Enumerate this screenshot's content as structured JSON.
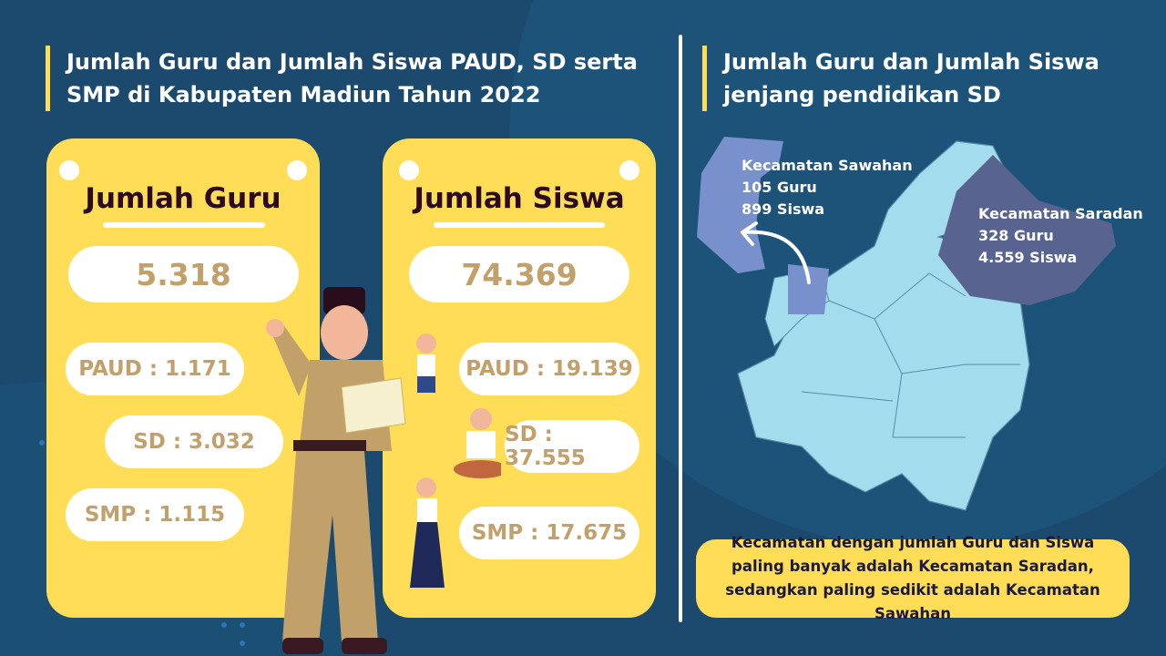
{
  "left_title": "Jumlah Guru dan Jumlah Siswa PAUD, SD serta SMP di Kabupaten Madiun Tahun 2022",
  "right_title": "Jumlah Guru dan Jumlah Siswa jenjang pendidikan SD",
  "guru": {
    "heading": "Jumlah Guru",
    "total": "5.318",
    "paud": "PAUD : 1.171",
    "sd": "SD : 3.032",
    "smp": "SMP : 1.115"
  },
  "siswa": {
    "heading": "Jumlah Siswa",
    "total": "74.369",
    "paud": "PAUD : 19.139",
    "sd": "SD : 37.555",
    "smp": "SMP : 17.675"
  },
  "map": {
    "sawahan": {
      "name": "Kecamatan Sawahan",
      "guru": "105 Guru",
      "siswa": "899 Siswa"
    },
    "saradan": {
      "name": "Kecamatan Saradan",
      "guru": "328 Guru",
      "siswa": "4.559 Siswa"
    }
  },
  "note": "Kecamatan dengan jumlah Guru dan Siswa paling banyak adalah Kecamatan Saradan, sedangkan paling sedikit adalah Kecamatan Sawahan",
  "colors": {
    "background": "#1b4a6e",
    "card": "#ffdd57",
    "number": "#c2a06a",
    "map": "#a3dced",
    "sawahan": "#7890cb",
    "saradan": "#58648f"
  }
}
